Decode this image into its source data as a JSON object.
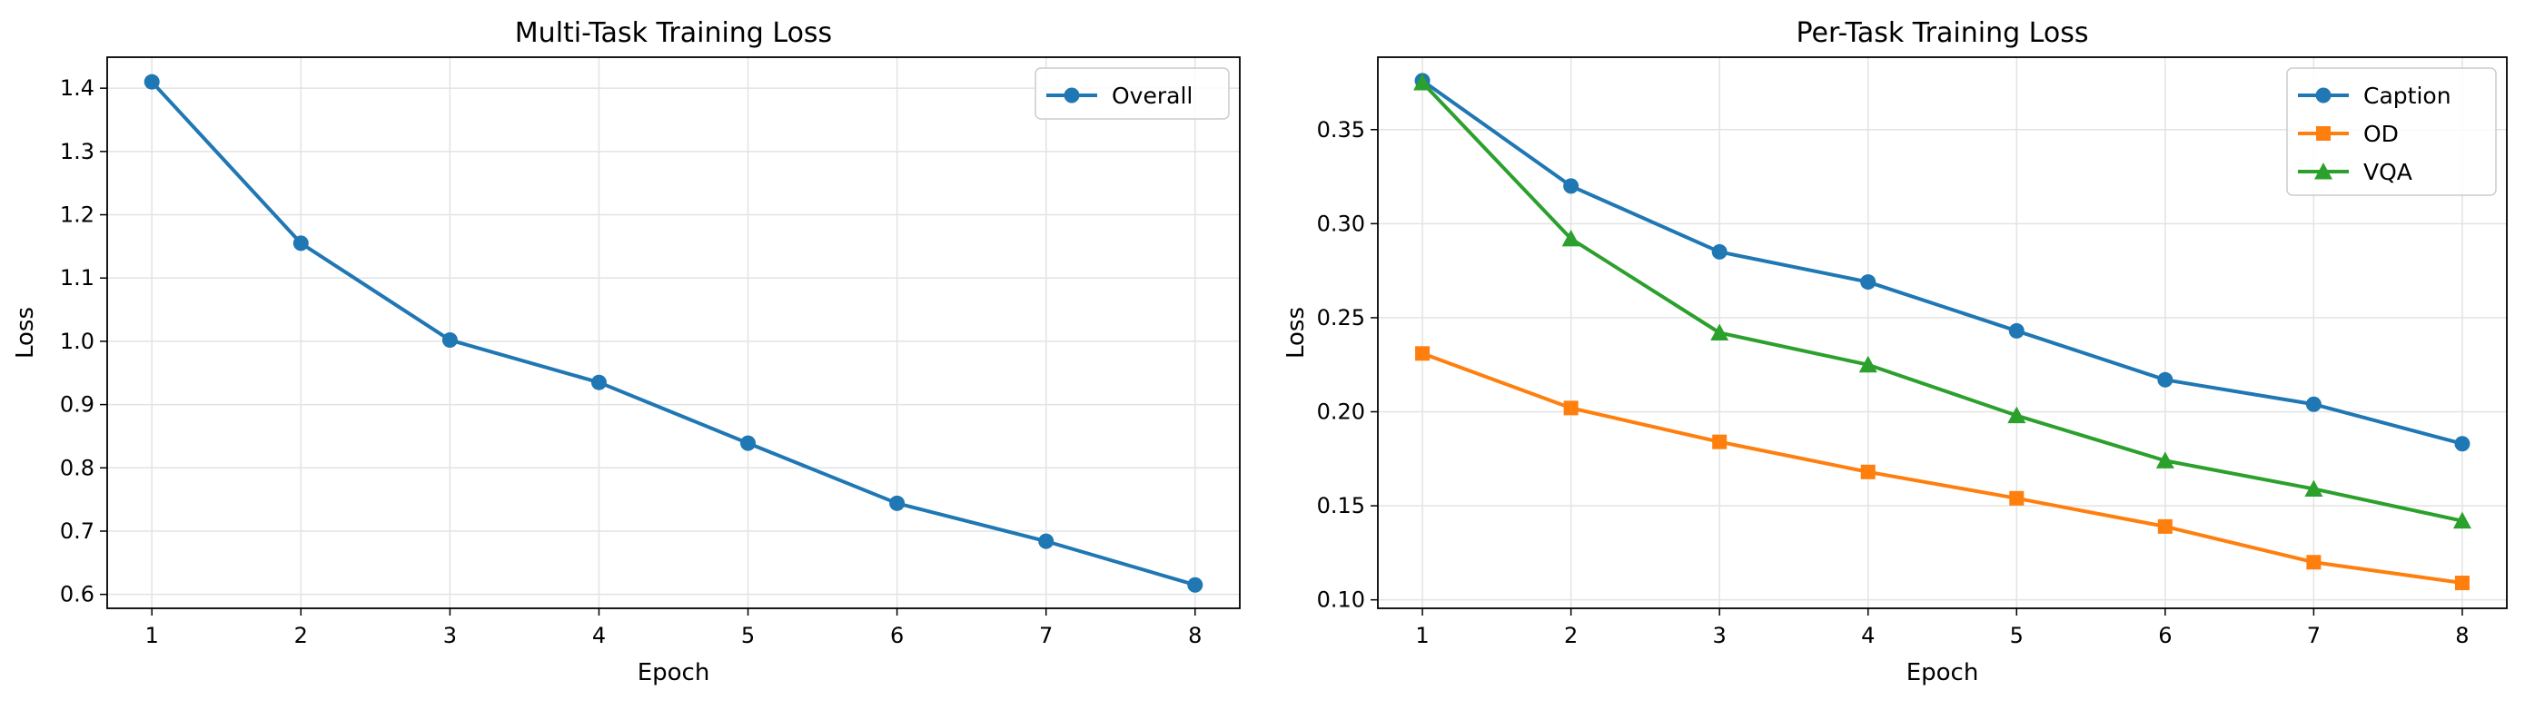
{
  "chart_data": [
    {
      "type": "line",
      "title": "Multi-Task Training Loss",
      "xlabel": "Epoch",
      "ylabel": "Loss",
      "x": [
        1,
        2,
        3,
        4,
        5,
        6,
        7,
        8
      ],
      "xticks": [
        "1",
        "2",
        "3",
        "4",
        "5",
        "6",
        "7",
        "8"
      ],
      "xlim": [
        0.7,
        8.3
      ],
      "ylim": [
        0.578,
        1.449
      ],
      "yticks": [
        "0.6",
        "0.7",
        "0.8",
        "0.9",
        "1.0",
        "1.1",
        "1.2",
        "1.3",
        "1.4"
      ],
      "ytick_values": [
        0.6,
        0.7,
        0.8,
        0.9,
        1.0,
        1.1,
        1.2,
        1.3,
        1.4
      ],
      "grid": true,
      "legend_position": "top-right",
      "series": [
        {
          "name": "Overall",
          "color": "#1f77b4",
          "marker": "circle",
          "values": [
            1.41,
            1.155,
            1.002,
            0.935,
            0.839,
            0.744,
            0.684,
            0.615
          ]
        }
      ]
    },
    {
      "type": "line",
      "title": "Per-Task Training Loss",
      "xlabel": "Epoch",
      "ylabel": "Loss",
      "x": [
        1,
        2,
        3,
        4,
        5,
        6,
        7,
        8
      ],
      "xticks": [
        "1",
        "2",
        "3",
        "4",
        "5",
        "6",
        "7",
        "8"
      ],
      "xlim": [
        0.7,
        8.3
      ],
      "ylim": [
        0.0955,
        0.3885
      ],
      "yticks": [
        "0.10",
        "0.15",
        "0.20",
        "0.25",
        "0.30",
        "0.35"
      ],
      "ytick_values": [
        0.1,
        0.15,
        0.2,
        0.25,
        0.3,
        0.35
      ],
      "grid": true,
      "legend_position": "top-right",
      "series": [
        {
          "name": "Caption",
          "color": "#1f77b4",
          "marker": "circle",
          "values": [
            0.376,
            0.32,
            0.285,
            0.269,
            0.243,
            0.217,
            0.204,
            0.183
          ]
        },
        {
          "name": "OD",
          "color": "#ff7f0e",
          "marker": "square",
          "values": [
            0.231,
            0.202,
            0.184,
            0.168,
            0.154,
            0.139,
            0.12,
            0.109
          ]
        },
        {
          "name": "VQA",
          "color": "#2ca02c",
          "marker": "triangle",
          "values": [
            0.375,
            0.292,
            0.242,
            0.225,
            0.198,
            0.174,
            0.159,
            0.142
          ]
        }
      ]
    }
  ]
}
